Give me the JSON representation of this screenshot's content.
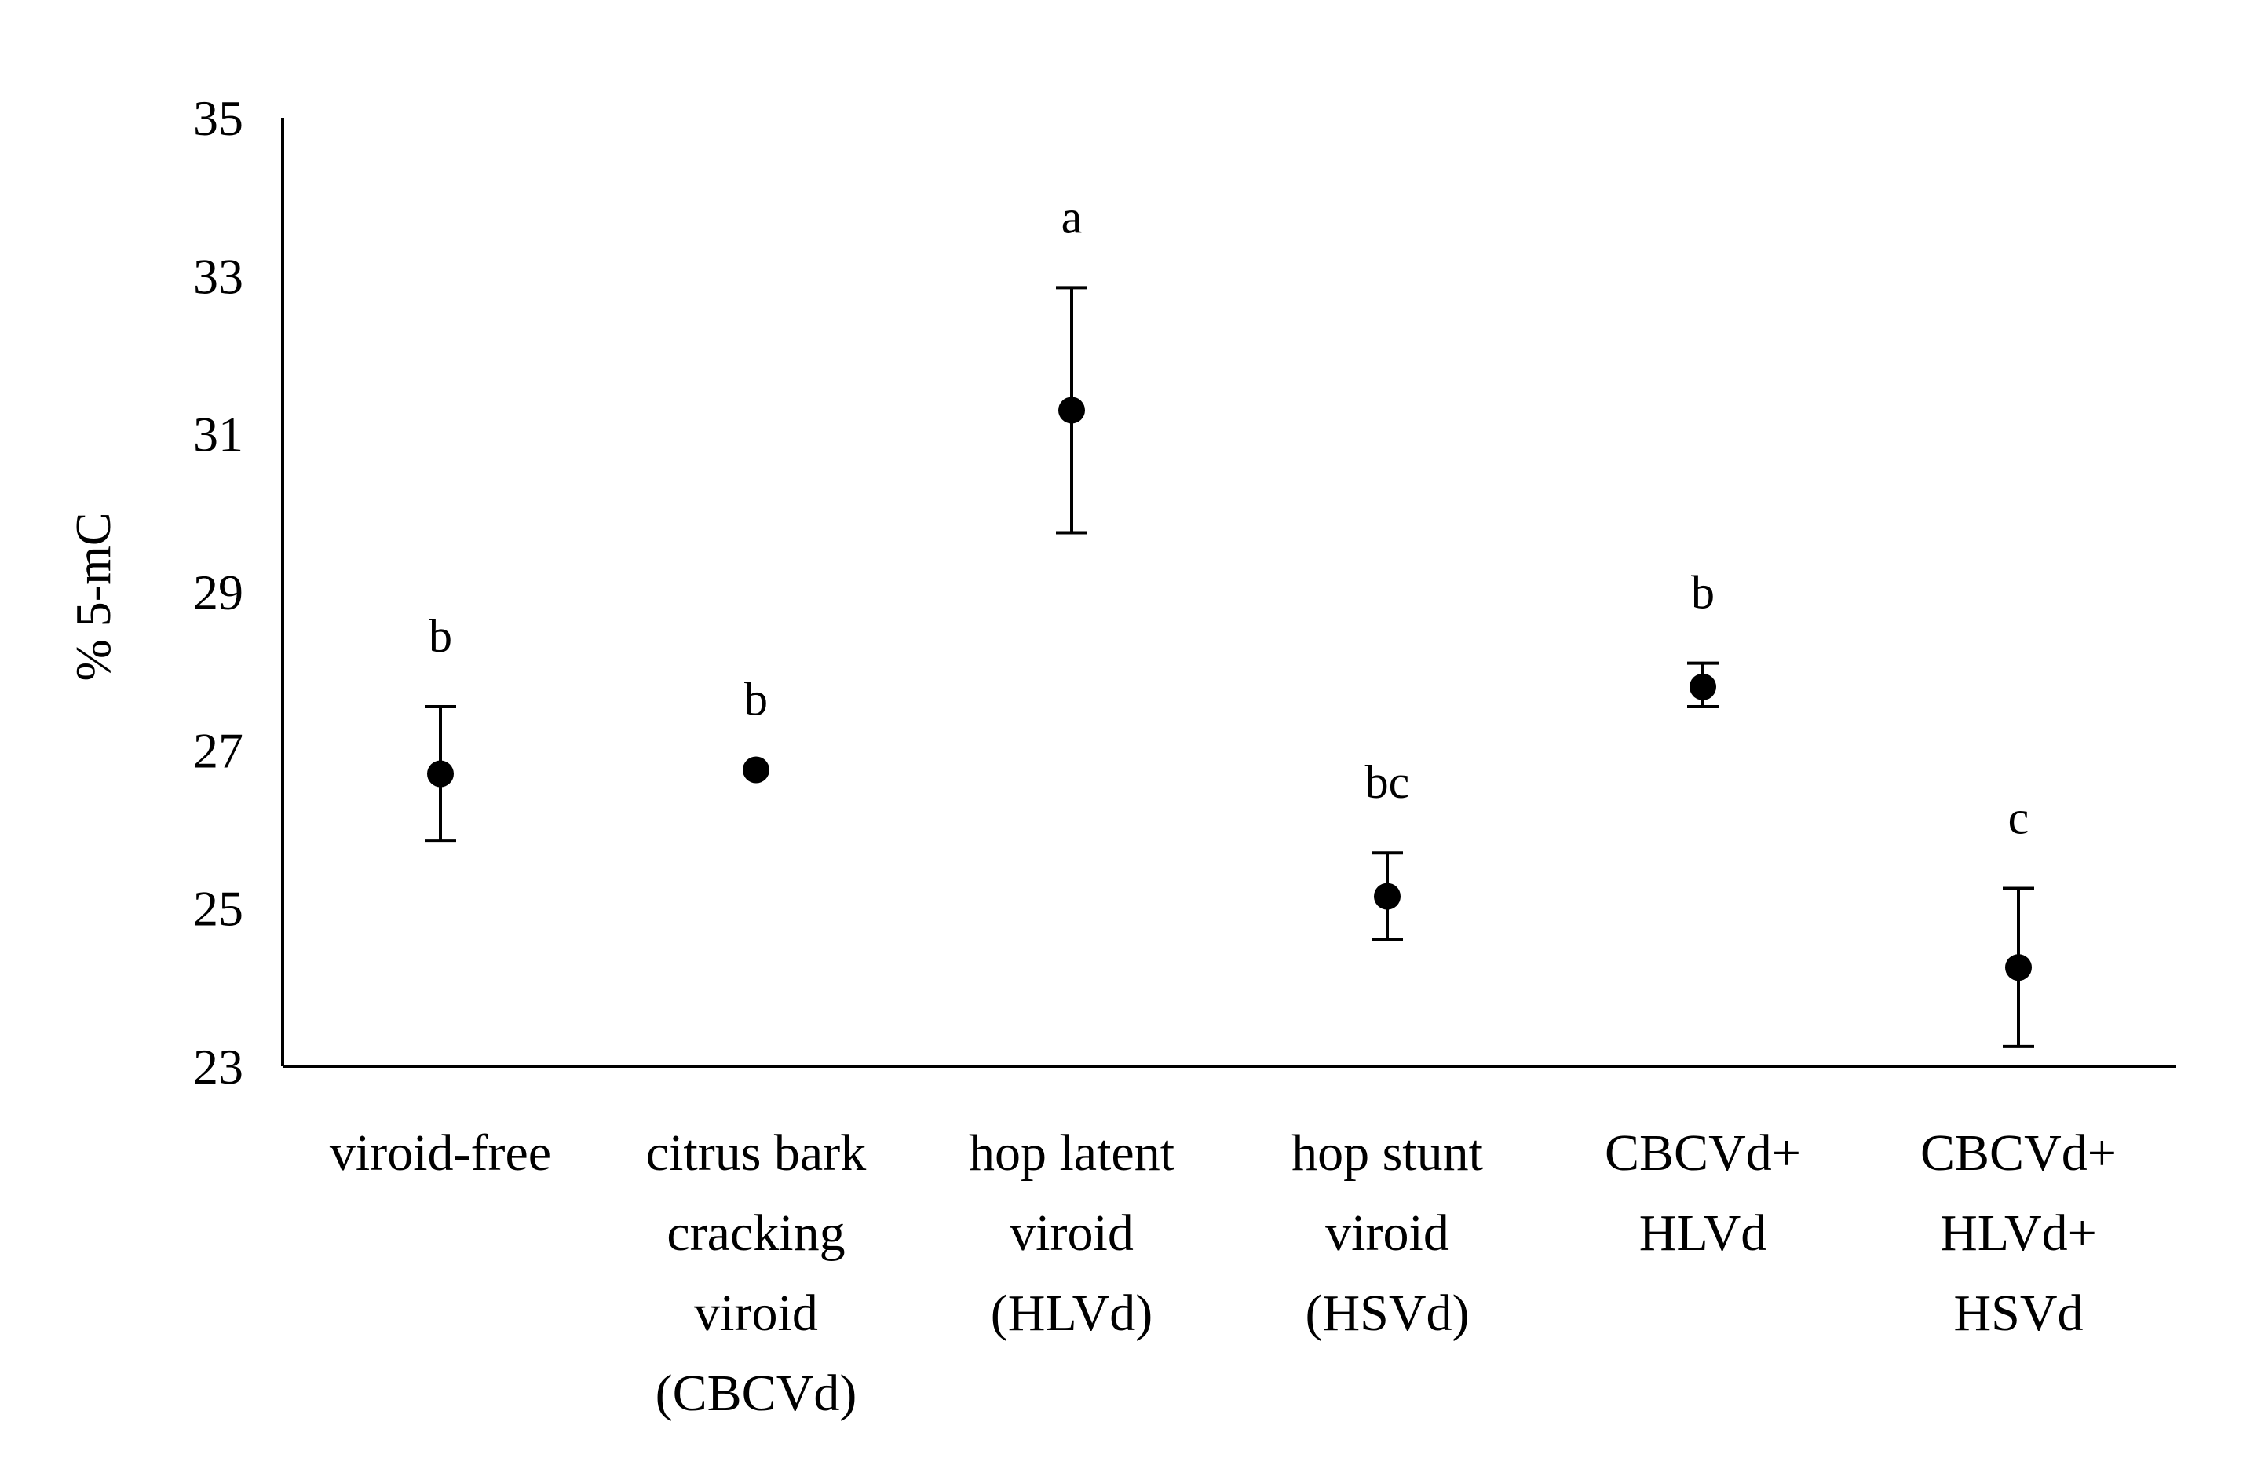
{
  "chart_data": {
    "type": "scatter",
    "title": "",
    "xlabel": "",
    "ylabel": "% 5-mC",
    "ylim": [
      23,
      35
    ],
    "yticks": [
      23,
      25,
      27,
      29,
      31,
      33,
      35
    ],
    "grid": false,
    "legend": "none",
    "marker_color": "#000000",
    "categories": [
      [
        "viroid-free"
      ],
      [
        "citrus bark",
        "cracking",
        "viroid",
        "(CBCVd)"
      ],
      [
        "hop latent",
        "viroid",
        "(HLVd)"
      ],
      [
        "hop stunt",
        "viroid",
        "(HSVd)"
      ],
      [
        "CBCVd+",
        "HLVd"
      ],
      [
        "CBCVd+",
        "HLVd+",
        "HSVd"
      ]
    ],
    "values": [
      26.7,
      26.75,
      31.3,
      25.15,
      27.8,
      24.25
    ],
    "error_low": [
      25.85,
      26.75,
      29.75,
      24.6,
      27.55,
      23.25
    ],
    "error_high": [
      27.55,
      26.75,
      32.85,
      25.7,
      28.1,
      25.25
    ],
    "significance_letters": [
      "b",
      "b",
      "a",
      "bc",
      "b",
      "c"
    ]
  }
}
